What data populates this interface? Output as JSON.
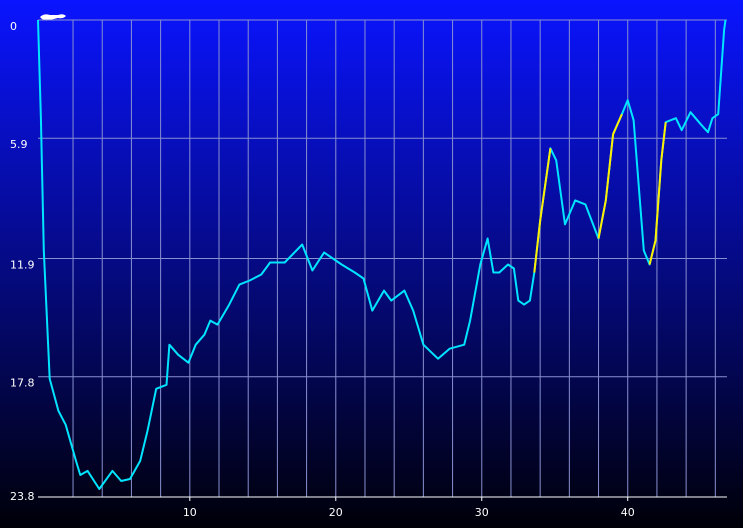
{
  "chart_data": {
    "type": "line",
    "x": [
      -0.4,
      -0.2,
      0,
      0.4,
      1,
      1.5,
      2.2,
      2.5,
      3,
      3.8,
      4.7,
      5.3,
      5.9,
      6.6,
      7.1,
      7.7,
      8.4,
      8.6,
      9.2,
      9.9,
      10.4,
      11,
      11.4,
      11.9,
      12.7,
      13.4,
      14.1,
      14.9,
      15.5,
      16.5,
      17.7,
      18.4,
      19.2,
      20.4,
      21.3,
      21.9,
      22.5,
      23.3,
      23.8,
      24.7,
      25.3,
      26,
      27,
      27.8,
      28.8,
      29.2,
      29.9,
      30.4,
      30.8,
      31.2,
      31.8,
      32.2,
      32.5,
      32.9,
      33.3,
      33.6,
      34,
      34.7,
      35.1,
      35.7,
      36.4,
      37.1,
      38,
      38.5,
      39,
      39.6,
      40,
      40.4,
      41.1,
      41.5,
      41.9,
      42.3,
      42.6,
      43.3,
      43.7,
      44.3,
      45,
      45.5,
      45.8,
      46.2,
      46.6,
      46.7
    ],
    "series": [
      {
        "color": "#00e5ff",
        "values": [
          0,
          4.9,
          11.5,
          17.9,
          19.5,
          20.2,
          22,
          22.7,
          22.5,
          23.4,
          22.5,
          23,
          22.9,
          22,
          20.5,
          18.4,
          18.2,
          16.2,
          16.7,
          17.1,
          16.2,
          15.7,
          15,
          15.2,
          14.2,
          13.2,
          13,
          12.7,
          12.1,
          12.1,
          11.2,
          12.5,
          11.6,
          12.2,
          12.6,
          12.9,
          14.5,
          13.5,
          14,
          13.5,
          14.5,
          16.2,
          16.9,
          16.4,
          16.2,
          15,
          12.2,
          10.9,
          12.6,
          12.6,
          12.2,
          12.4,
          14,
          14.2,
          14,
          12.6,
          10,
          6.4,
          7,
          10.2,
          9,
          9.2,
          10.9,
          9,
          5.7,
          4.7,
          4,
          5,
          11.5,
          12.2,
          11,
          7,
          5.1,
          4.9,
          5.5,
          4.6,
          5.2,
          5.6,
          4.9,
          4.7,
          0.5,
          0
        ]
      },
      {
        "color": "#ffee00",
        "values": [
          null,
          null,
          null,
          null,
          null,
          null,
          null,
          null,
          null,
          null,
          null,
          null,
          null,
          null,
          null,
          null,
          null,
          null,
          null,
          null,
          null,
          null,
          null,
          null,
          null,
          null,
          null,
          null,
          null,
          null,
          null,
          null,
          null,
          null,
          null,
          null,
          null,
          null,
          null,
          null,
          null,
          null,
          null,
          null,
          null,
          null,
          null,
          null,
          null,
          null,
          null,
          null,
          null,
          null,
          null,
          12.6,
          10,
          6.4,
          null,
          null,
          null,
          null,
          10.9,
          9,
          5.7,
          4.7,
          null,
          null,
          null,
          12.2,
          11,
          7,
          5.1,
          null,
          null,
          null,
          null,
          null,
          null,
          null,
          null,
          null
        ]
      }
    ],
    "xlim": [
      -0.4,
      46.8
    ],
    "xticks": [
      10,
      20,
      30,
      40
    ],
    "x_grid": [
      2,
      4,
      6,
      8,
      10,
      12,
      14,
      16,
      18,
      20,
      22,
      24,
      26,
      28,
      30,
      32,
      34,
      36,
      38,
      40,
      42,
      44,
      46
    ],
    "ylim": [
      0,
      23.8
    ],
    "y_inverted": true,
    "yticks": [
      0,
      5.9,
      11.9,
      17.8,
      23.8
    ],
    "grid": true
  }
}
